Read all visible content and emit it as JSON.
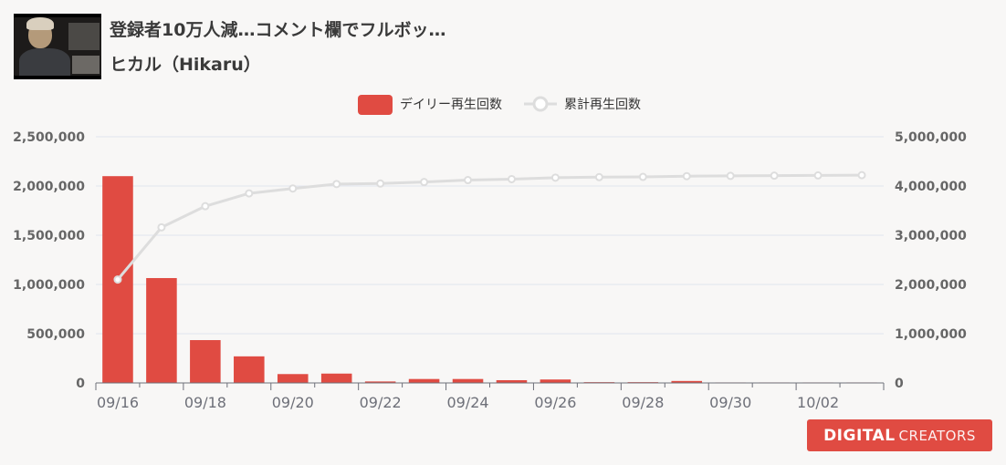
{
  "video": {
    "title": "登録者10万人減…コメント欄でフルボッ…",
    "channel": "ヒカル（Hikaru）"
  },
  "brand": {
    "name_bold": "DIGITAL",
    "name_light": "CREATORS",
    "color": "#e04b42"
  },
  "colors": {
    "bar": "#e04b42",
    "line": "#dddddd",
    "grid": "#e0e4ef",
    "axis": "#6e7079",
    "tick_text": "#666666"
  },
  "chart_data": {
    "type": "bar",
    "title": "",
    "categories": [
      "09/16",
      "09/17",
      "09/18",
      "09/19",
      "09/20",
      "09/21",
      "09/22",
      "09/23",
      "09/24",
      "09/25",
      "09/26",
      "09/27",
      "09/28",
      "09/29",
      "09/30",
      "10/01",
      "10/02",
      "10/03"
    ],
    "x_tick_labels": [
      "09/16",
      "09/18",
      "09/20",
      "09/22",
      "09/24",
      "09/26",
      "09/28",
      "09/30",
      "10/02"
    ],
    "y_left": {
      "min": 0,
      "max": 2500000,
      "ticks": [
        "0",
        "500,000",
        "1,000,000",
        "1,500,000",
        "2,000,000",
        "2,500,000"
      ]
    },
    "y_right": {
      "min": 0,
      "max": 5000000,
      "ticks": [
        "0",
        "1,000,000",
        "2,000,000",
        "3,000,000",
        "4,000,000",
        "5,000,000"
      ]
    },
    "legend_position": "top-center",
    "grid": true,
    "series": [
      {
        "name": "デイリー再生回数",
        "type": "bar",
        "axis": "left",
        "values": [
          2100000,
          1065000,
          435000,
          270000,
          90000,
          95000,
          15000,
          40000,
          40000,
          28000,
          35000,
          8000,
          8000,
          20000,
          5000,
          5000,
          5000,
          5000
        ]
      },
      {
        "name": "累計再生回数",
        "type": "line",
        "axis": "right",
        "values": [
          2100000,
          3160000,
          3590000,
          3850000,
          3950000,
          4040000,
          4050000,
          4080000,
          4120000,
          4140000,
          4170000,
          4180000,
          4185000,
          4200000,
          4205000,
          4210000,
          4215000,
          4220000
        ]
      }
    ]
  }
}
